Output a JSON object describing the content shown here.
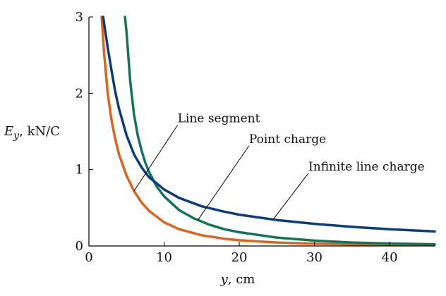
{
  "chart_data": {
    "type": "line",
    "title": "",
    "xlabel_var": "y",
    "xlabel_unit": ", cm",
    "ylabel_var": "E",
    "ylabel_sub": "y",
    "ylabel_unit": ", kN/C",
    "xlim": [
      0,
      46
    ],
    "ylim": [
      0,
      3
    ],
    "xticks": [
      0,
      10,
      20,
      30,
      40
    ],
    "yticks": [
      0,
      1,
      2,
      3
    ],
    "grid": false,
    "series": [
      {
        "name": "Line segment",
        "color": "#d9651f",
        "x": [
          1.7,
          2,
          2.5,
          3,
          3.5,
          4,
          5,
          6,
          7,
          8,
          10,
          12,
          15,
          18,
          20,
          25,
          30,
          35,
          40,
          46
        ],
        "y": [
          3.0,
          2.55,
          2.0,
          1.65,
          1.4,
          1.2,
          0.92,
          0.72,
          0.57,
          0.46,
          0.31,
          0.22,
          0.14,
          0.095,
          0.075,
          0.045,
          0.03,
          0.02,
          0.015,
          0.011
        ]
      },
      {
        "name": "Point charge",
        "color": "#137556",
        "x": [
          4.8,
          5,
          5.5,
          6,
          6.5,
          7,
          7.5,
          8,
          9,
          10,
          12,
          14,
          16,
          18,
          20,
          25,
          30,
          35,
          40,
          46
        ],
        "y": [
          3.0,
          2.8,
          2.15,
          1.72,
          1.45,
          1.25,
          1.09,
          0.97,
          0.78,
          0.65,
          0.47,
          0.36,
          0.28,
          0.22,
          0.18,
          0.11,
          0.07,
          0.045,
          0.032,
          0.022
        ]
      },
      {
        "name": "Infinite line charge",
        "color": "#0b3d7c",
        "x": [
          1.9,
          2.2,
          2.5,
          3,
          3.5,
          4,
          5,
          6,
          7,
          8,
          10,
          12,
          15,
          18,
          20,
          25,
          30,
          35,
          40,
          46
        ],
        "y": [
          3.0,
          2.8,
          2.6,
          2.3,
          2.02,
          1.8,
          1.45,
          1.2,
          1.03,
          0.9,
          0.74,
          0.63,
          0.52,
          0.45,
          0.41,
          0.34,
          0.29,
          0.25,
          0.22,
          0.19
        ]
      }
    ],
    "annotations": [
      {
        "text": "Line segment",
        "series": 0,
        "at_x": 6,
        "label_x": 11.8,
        "label_y": 1.62
      },
      {
        "text": "Point charge",
        "series": 1,
        "at_x": 14.5,
        "label_x": 21.3,
        "label_y": 1.35
      },
      {
        "text": "Infinite line charge",
        "series": 2,
        "at_x": 24.5,
        "label_x": 29.2,
        "label_y": 0.99
      }
    ]
  }
}
